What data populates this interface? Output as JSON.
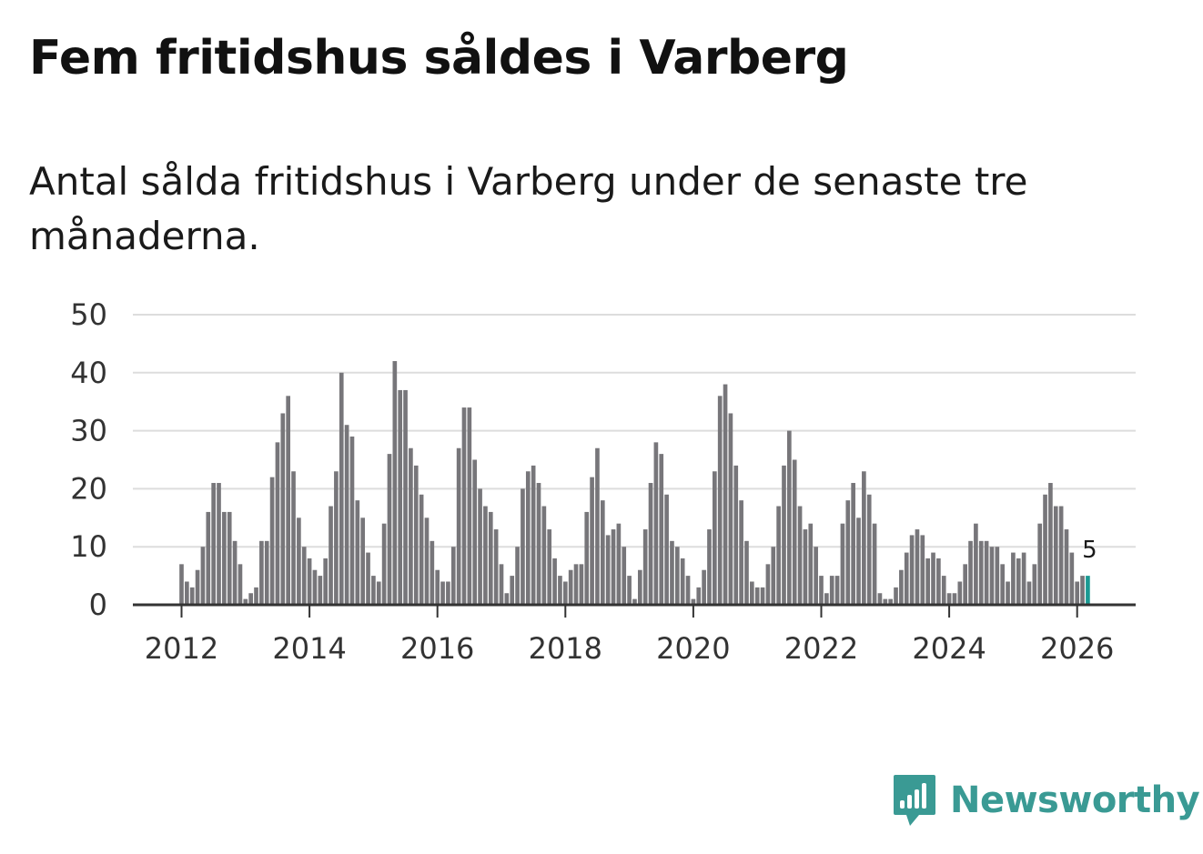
{
  "title": "Fem fritidshus såldes i Varberg",
  "subtitle": "Antal sålda fritidshus i Varberg under de senaste tre månaderna.",
  "logo": {
    "text": "Newsworthy"
  },
  "colors": {
    "bar": "#77767a",
    "highlight": "#1a9a93",
    "grid": "#dddddd",
    "axis": "#333333"
  },
  "chart_data": {
    "type": "bar",
    "title": "Fem fritidshus såldes i Varberg",
    "xlabel": "",
    "ylabel": "",
    "ylim": [
      0,
      50
    ],
    "yticks": [
      "0",
      "10",
      "20",
      "30",
      "40",
      "50"
    ],
    "xticks": [
      "2012",
      "2014",
      "2016",
      "2018",
      "2020",
      "2022",
      "2024",
      "2026"
    ],
    "start": "2012-01",
    "highlight_label": "5",
    "values": [
      7,
      4,
      3,
      6,
      10,
      16,
      21,
      21,
      16,
      16,
      11,
      7,
      1,
      2,
      3,
      11,
      11,
      22,
      28,
      33,
      36,
      23,
      15,
      10,
      8,
      6,
      5,
      8,
      17,
      23,
      40,
      31,
      29,
      18,
      15,
      9,
      5,
      4,
      14,
      26,
      42,
      37,
      37,
      27,
      24,
      19,
      15,
      11,
      6,
      4,
      4,
      10,
      27,
      34,
      34,
      25,
      20,
      17,
      16,
      13,
      7,
      2,
      5,
      10,
      20,
      23,
      24,
      21,
      17,
      13,
      8,
      5,
      4,
      6,
      7,
      7,
      16,
      22,
      27,
      18,
      12,
      13,
      14,
      10,
      5,
      1,
      6,
      13,
      21,
      28,
      26,
      19,
      11,
      10,
      8,
      5,
      1,
      3,
      6,
      13,
      23,
      36,
      38,
      33,
      24,
      18,
      11,
      4,
      3,
      3,
      7,
      10,
      17,
      24,
      30,
      25,
      17,
      13,
      14,
      10,
      5,
      2,
      5,
      5,
      14,
      18,
      21,
      15,
      23,
      19,
      14,
      2,
      1,
      1,
      3,
      6,
      9,
      12,
      13,
      12,
      8,
      9,
      8,
      5,
      2,
      2,
      4,
      7,
      11,
      14,
      11,
      11,
      10,
      10,
      7,
      4,
      9,
      8,
      9,
      4,
      7,
      14,
      19,
      21,
      17,
      17,
      13,
      9,
      4,
      5,
      5
    ]
  }
}
